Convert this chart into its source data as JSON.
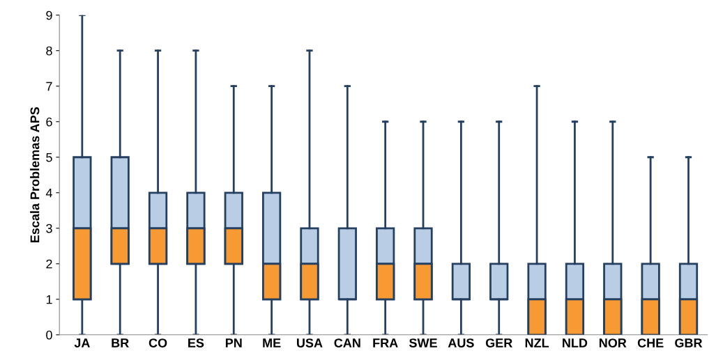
{
  "chart_data": {
    "type": "box",
    "ylabel": "Escala Problemas APS",
    "categories": [
      "JA",
      "BR",
      "CO",
      "ES",
      "PN",
      "ME",
      "USA",
      "CAN",
      "FRA",
      "SWE",
      "AUS",
      "GER",
      "NZL",
      "NLD",
      "NOR",
      "CHE",
      "GBR"
    ],
    "ylim": [
      0,
      9
    ],
    "yticks": [
      0,
      1,
      2,
      3,
      4,
      5,
      6,
      7,
      8,
      9
    ],
    "grid": false,
    "legend": false,
    "series": [
      {
        "color": "#b9cde5",
        "colors": [
          "#f79a34",
          "#f79a34",
          "#f79a34",
          "#f79a34",
          "#f79a34",
          "#f79a34",
          "#f79a34",
          "#b9cde5",
          "#f79a34",
          "#f79a34",
          "#b9cde5",
          "#b9cde5",
          "#f79a34",
          "#f79a34",
          "#f79a34",
          "#f79a34",
          "#f79a34"
        ],
        "boxes": [
          {
            "low": 0,
            "q1": 1,
            "median": 3,
            "q3": 5,
            "high": 9
          },
          {
            "low": 0,
            "q1": 2,
            "median": 3,
            "q3": 5,
            "high": 8
          },
          {
            "low": 0,
            "q1": 2,
            "median": 3,
            "q3": 4,
            "high": 8
          },
          {
            "low": 0,
            "q1": 2,
            "median": 3,
            "q3": 4,
            "high": 8
          },
          {
            "low": 0,
            "q1": 2,
            "median": 3,
            "q3": 4,
            "high": 7
          },
          {
            "low": 0,
            "q1": 1,
            "median": 2,
            "q3": 4,
            "high": 7
          },
          {
            "low": 0,
            "q1": 1,
            "median": 2,
            "q3": 3,
            "high": 8
          },
          {
            "low": 0,
            "q1": 1,
            "median": 1,
            "q3": 3,
            "high": 7
          },
          {
            "low": 0,
            "q1": 1,
            "median": 2,
            "q3": 3,
            "high": 6
          },
          {
            "low": 0,
            "q1": 1,
            "median": 2,
            "q3": 3,
            "high": 6
          },
          {
            "low": 0,
            "q1": 1,
            "median": 1,
            "q3": 2,
            "high": 6
          },
          {
            "low": 0,
            "q1": 1,
            "median": 1,
            "q3": 2,
            "high": 6
          },
          {
            "low": 0,
            "q1": 0,
            "median": 1,
            "q3": 2,
            "high": 7
          },
          {
            "low": 0,
            "q1": 0,
            "median": 1,
            "q3": 2,
            "high": 6
          },
          {
            "low": 0,
            "q1": 0,
            "median": 1,
            "q3": 2,
            "high": 6
          },
          {
            "low": 0,
            "q1": 0,
            "median": 1,
            "q3": 2,
            "high": 5
          },
          {
            "low": 0,
            "q1": 0,
            "median": 1,
            "q3": 2,
            "high": 5
          }
        ]
      }
    ]
  }
}
